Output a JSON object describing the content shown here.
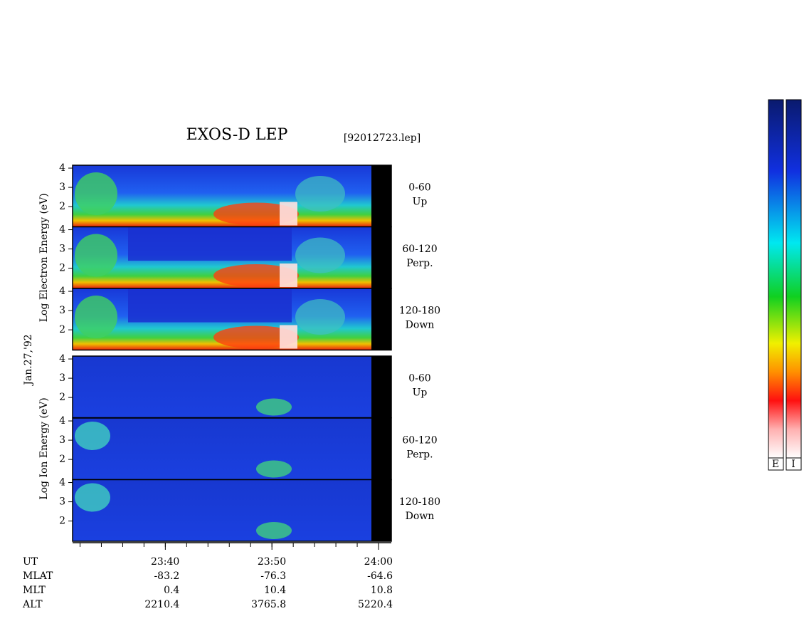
{
  "chart_data": {
    "type": "spectrogram",
    "title": "EXOS-D LEP",
    "subtitle": "[92012723.lep]",
    "date": "Jan.27,'92",
    "groups": [
      {
        "ylabel": "Log Electron Energy (eV)",
        "panels": [
          {
            "label": "0-60",
            "direction": "Up"
          },
          {
            "label": "60-120",
            "direction": "Perp."
          },
          {
            "label": "120-180",
            "direction": "Down"
          }
        ]
      },
      {
        "ylabel": "Log Ion Energy (eV)",
        "panels": [
          {
            "label": "0-60",
            "direction": "Up"
          },
          {
            "label": "60-120",
            "direction": "Perp."
          },
          {
            "label": "120-180",
            "direction": "Down"
          }
        ]
      }
    ],
    "ylim": [
      0.95,
      4.15
    ],
    "yticks": [
      2,
      3,
      4
    ],
    "xlim": [
      31.3,
      61.2
    ],
    "xticks": [
      {
        "value": 40,
        "label": "23:40"
      },
      {
        "value": 50,
        "label": "23:50"
      },
      {
        "value": 60,
        "label": "24:00"
      }
    ],
    "xticks_minor": [
      32,
      34,
      36,
      38,
      40,
      42,
      44,
      46,
      48,
      50,
      52,
      54,
      56,
      58,
      60
    ],
    "x_label": "UT",
    "ephemeris": [
      {
        "name": "MLAT",
        "values": [
          -83.2,
          -76.3,
          -64.6
        ]
      },
      {
        "name": "MLT",
        "values": [
          0.4,
          10.4,
          10.8
        ]
      },
      {
        "name": "ALT",
        "values": [
          2210.4,
          3765.8,
          5220.4
        ]
      }
    ],
    "colorbar_labels": [
      "E",
      "I"
    ]
  }
}
